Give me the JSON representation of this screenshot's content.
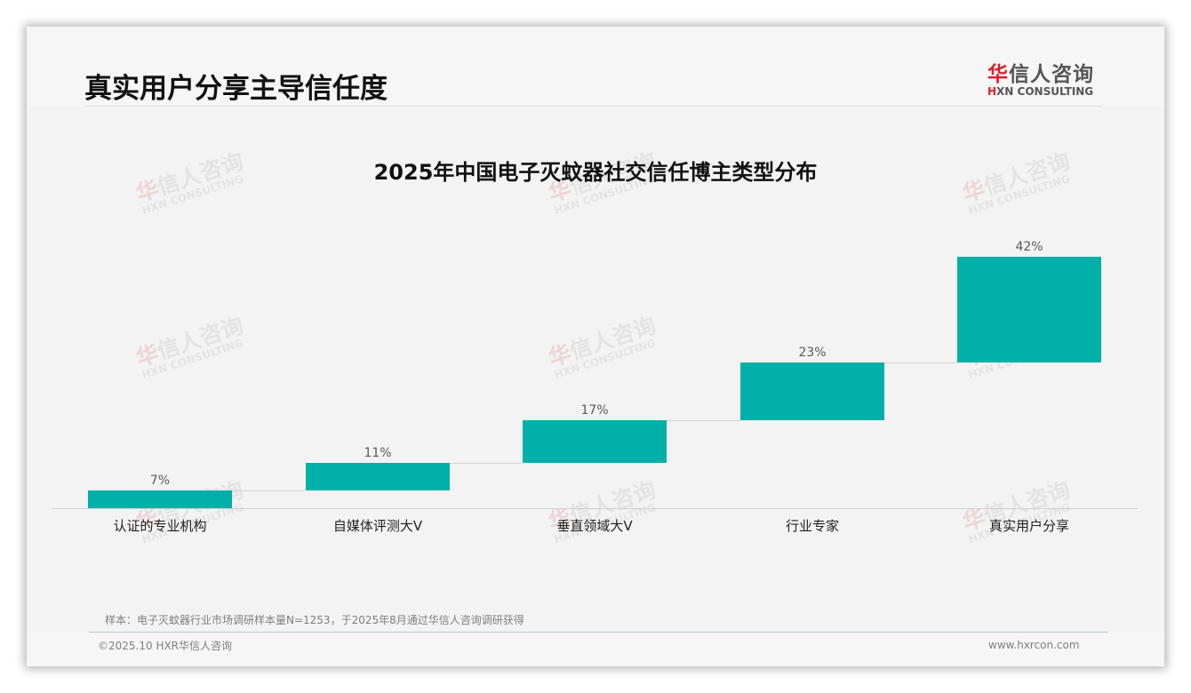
{
  "header": {
    "title": "真实用户分享主导信任度",
    "logo": {
      "cn_red": "华",
      "cn_rest": "信人咨询",
      "en_red": "H",
      "en_rest": "XN CONSULTING"
    }
  },
  "watermark": {
    "cn_red": "华",
    "cn_rest": "信人咨询",
    "en": "HXN CONSULTING"
  },
  "chart_data": {
    "type": "bar",
    "subtype": "waterfall",
    "title": "2025年中国电子灭蚊器社交信任博主类型分布",
    "categories": [
      "认证的专业机构",
      "自媒体评测大V",
      "垂直领域大V",
      "行业专家",
      "真实用户分享"
    ],
    "values": [
      7,
      11,
      17,
      23,
      42
    ],
    "value_labels": [
      "7%",
      "11%",
      "17%",
      "23%",
      "42%"
    ],
    "cumulative_start": [
      0,
      7,
      18,
      35,
      58
    ],
    "xlabel": "",
    "ylabel": "",
    "ylim": [
      0,
      100
    ],
    "grid": false,
    "legend": "none",
    "bar_color": "#00b0a8"
  },
  "footer": {
    "note": "样本：电子灭蚊器行业市场调研样本量N=1253，于2025年8月通过华信人咨询调研获得",
    "copyright": "©2025.10 HXR华信人咨询",
    "website": "www.hxrcon.com"
  }
}
